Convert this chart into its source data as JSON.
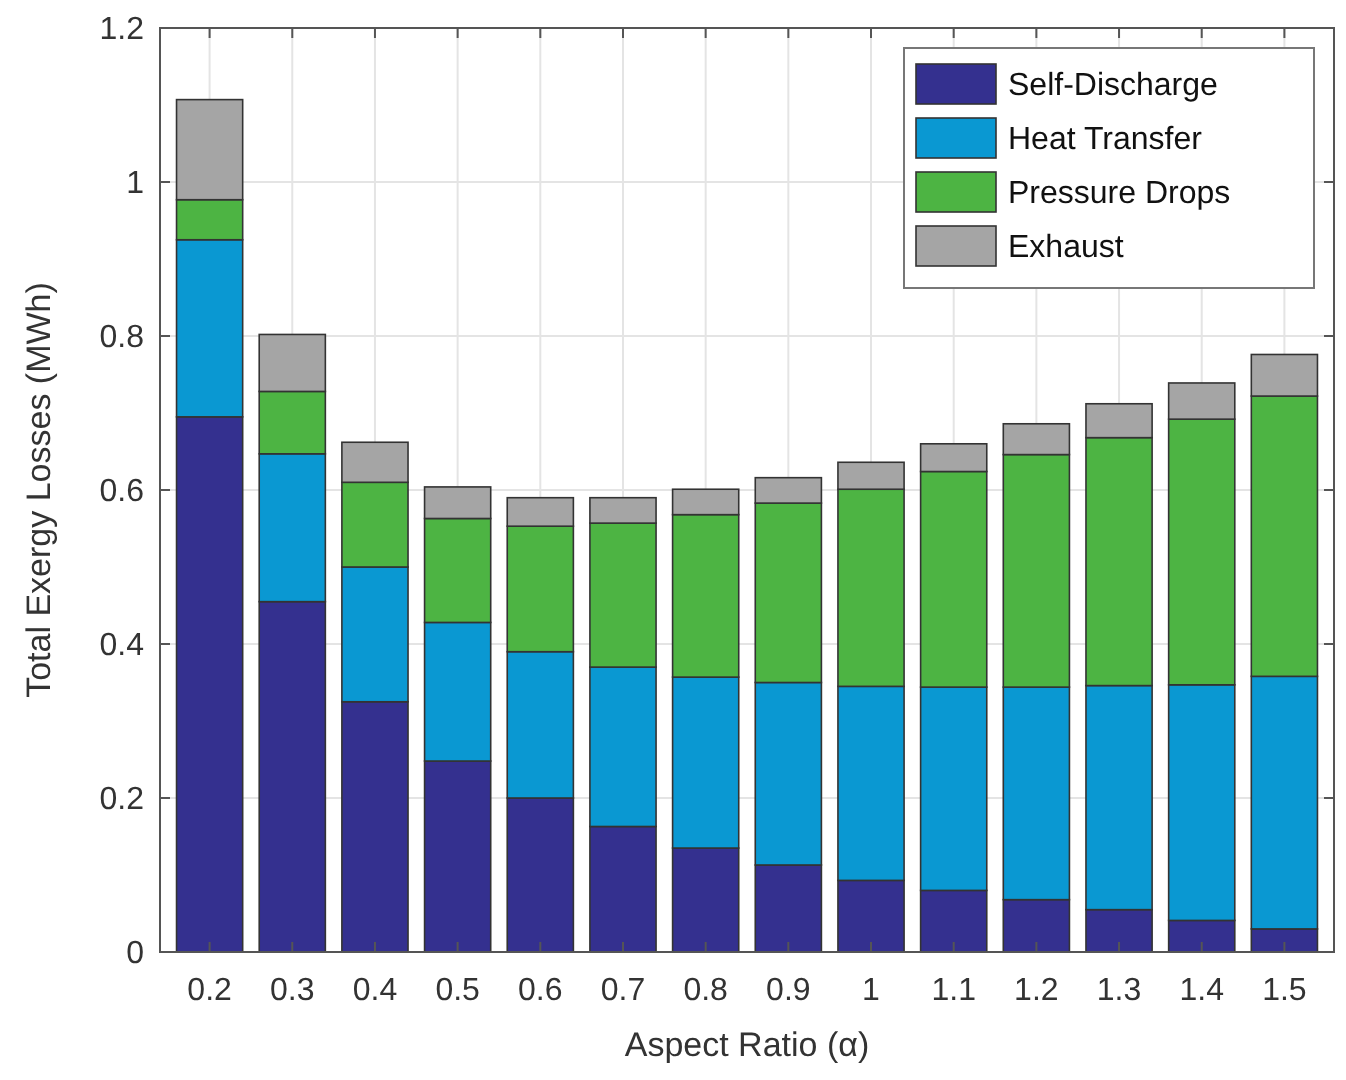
{
  "chart_data": {
    "type": "bar",
    "stacked": true,
    "xlabel": "Aspect Ratio (α)",
    "ylabel": "Total Exergy Losses (MWh)",
    "categories": [
      "0.2",
      "0.3",
      "0.4",
      "0.5",
      "0.6",
      "0.7",
      "0.8",
      "0.9",
      "1",
      "1.1",
      "1.2",
      "1.3",
      "1.4",
      "1.5"
    ],
    "series": [
      {
        "name": "Self-Discharge",
        "color": "#34308f",
        "values": [
          0.695,
          0.455,
          0.325,
          0.248,
          0.2,
          0.163,
          0.135,
          0.113,
          0.093,
          0.08,
          0.068,
          0.055,
          0.041,
          0.03
        ]
      },
      {
        "name": "Heat Transfer",
        "color": "#0a98d2",
        "values": [
          0.23,
          0.192,
          0.175,
          0.18,
          0.19,
          0.207,
          0.222,
          0.237,
          0.252,
          0.264,
          0.276,
          0.291,
          0.306,
          0.328
        ]
      },
      {
        "name": "Pressure Drops",
        "color": "#4db443",
        "values": [
          0.052,
          0.081,
          0.11,
          0.135,
          0.163,
          0.187,
          0.211,
          0.233,
          0.256,
          0.28,
          0.302,
          0.322,
          0.345,
          0.364
        ]
      },
      {
        "name": "Exhaust",
        "color": "#a5a5a5",
        "values": [
          0.13,
          0.074,
          0.052,
          0.041,
          0.037,
          0.033,
          0.033,
          0.033,
          0.035,
          0.036,
          0.04,
          0.044,
          0.047,
          0.054
        ]
      }
    ],
    "ylim": [
      0,
      1.2
    ],
    "yticks": [
      0,
      0.2,
      0.4,
      0.6,
      0.8,
      1,
      1.2
    ],
    "grid": true,
    "legend": "top right"
  }
}
